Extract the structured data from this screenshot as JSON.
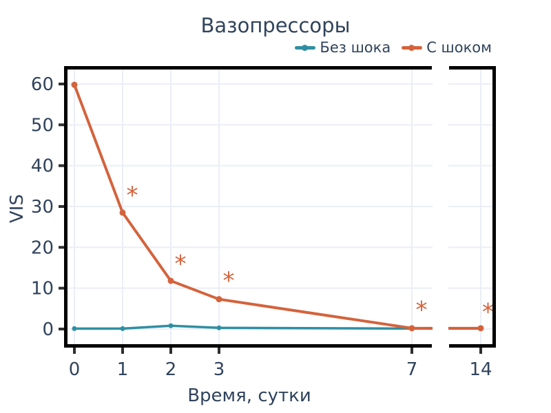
{
  "title": "Вазопрессоры",
  "colors": {
    "text_navy": "#30435c",
    "teal": "#2f8fa2",
    "orange": "#d4633c",
    "grid": "#eaeef6",
    "tick": "#2e2e2e",
    "border": "#000000",
    "background": "#ffffff"
  },
  "legend": {
    "position": "top-right",
    "items": [
      {
        "label": "Без шока",
        "color": "#2f8fa2"
      },
      {
        "label": "С шоком",
        "color": "#d4633c"
      }
    ]
  },
  "chart_data": {
    "type": "line",
    "title": "Вазопрессоры",
    "xlabel": "Время, сутки",
    "ylabel": "VIS",
    "x": [
      0,
      1,
      2,
      3,
      7,
      14
    ],
    "x_tick_labels": [
      "0",
      "1",
      "2",
      "3",
      "7",
      "14"
    ],
    "y_ticks": [
      0,
      10,
      20,
      30,
      40,
      50,
      60
    ],
    "y_tick_labels": [
      "0",
      "10",
      "20",
      "30",
      "40",
      "50",
      "60"
    ],
    "ylim": [
      0,
      60
    ],
    "grid": true,
    "legend_position": "top-right",
    "axis_break": {
      "between": [
        7,
        14
      ]
    },
    "series": [
      {
        "name": "Без шока",
        "color": "#2f8fa2",
        "values": [
          0.1,
          0.1,
          0.8,
          0.3,
          0.1,
          0.1
        ]
      },
      {
        "name": "С шоком",
        "color": "#d4633c",
        "values": [
          59.8,
          28.5,
          11.8,
          7.3,
          0.2,
          0.2
        ]
      }
    ],
    "annotations": {
      "symbol": "*",
      "color": "#d4633c",
      "points": [
        {
          "x": 1.2,
          "y": 33.5
        },
        {
          "x": 2.2,
          "y": 16.8
        },
        {
          "x": 3.2,
          "y": 12.6
        },
        {
          "x": 7.2,
          "y": 5.5
        },
        {
          "x": 14.15,
          "y": 5.0
        }
      ]
    }
  }
}
